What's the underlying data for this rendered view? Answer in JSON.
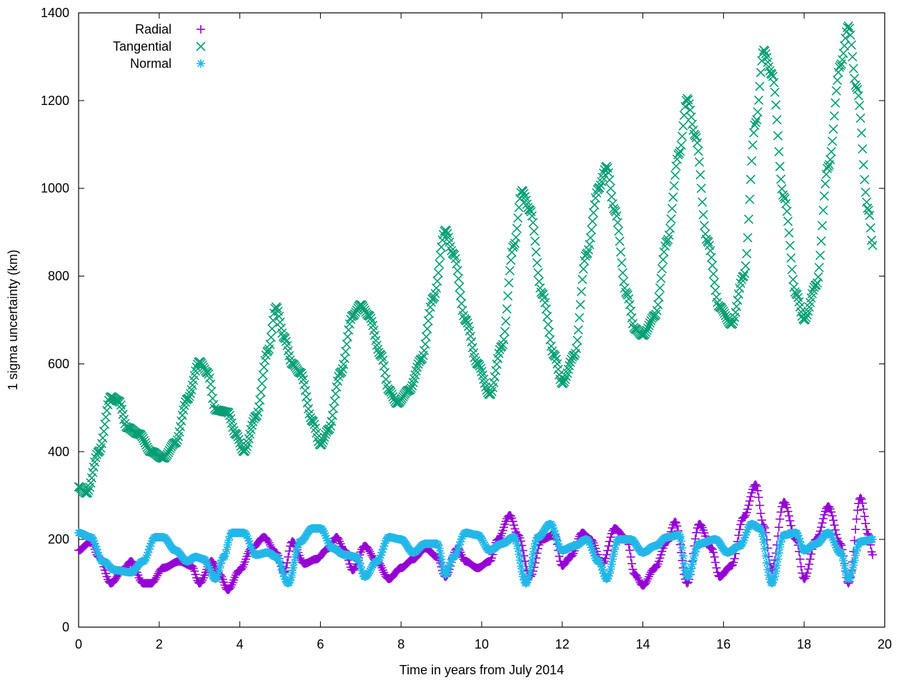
{
  "chart_data": {
    "type": "scatter",
    "xlabel": "Time in years from July 2014",
    "ylabel": "1 sigma uncertainty (km)",
    "xlim": [
      0,
      20
    ],
    "ylim": [
      0,
      1400
    ],
    "xticks": [
      0,
      2,
      4,
      6,
      8,
      10,
      12,
      14,
      16,
      18,
      20
    ],
    "yticks": [
      0,
      200,
      400,
      600,
      800,
      1000,
      1200,
      1400
    ],
    "grid": false,
    "legend_position": "top-left",
    "series": [
      {
        "name": "Radial",
        "marker": "plus",
        "color": "#9400d3",
        "points": [
          [
            0.0,
            175
          ],
          [
            0.3,
            195
          ],
          [
            0.5,
            160
          ],
          [
            0.8,
            100
          ],
          [
            1.1,
            130
          ],
          [
            1.3,
            150
          ],
          [
            1.6,
            100
          ],
          [
            1.8,
            100
          ],
          [
            2.1,
            135
          ],
          [
            2.5,
            150
          ],
          [
            2.8,
            140
          ],
          [
            3.0,
            100
          ],
          [
            3.3,
            150
          ],
          [
            3.5,
            120
          ],
          [
            3.7,
            85
          ],
          [
            4.0,
            130
          ],
          [
            4.3,
            180
          ],
          [
            4.6,
            205
          ],
          [
            4.9,
            170
          ],
          [
            5.1,
            125
          ],
          [
            5.3,
            195
          ],
          [
            5.6,
            145
          ],
          [
            5.9,
            155
          ],
          [
            6.2,
            180
          ],
          [
            6.4,
            205
          ],
          [
            6.6,
            175
          ],
          [
            6.8,
            130
          ],
          [
            7.1,
            185
          ],
          [
            7.4,
            150
          ],
          [
            7.7,
            110
          ],
          [
            8.0,
            135
          ],
          [
            8.3,
            155
          ],
          [
            8.6,
            180
          ],
          [
            8.9,
            160
          ],
          [
            9.1,
            115
          ],
          [
            9.4,
            180
          ],
          [
            9.6,
            150
          ],
          [
            9.9,
            135
          ],
          [
            10.2,
            150
          ],
          [
            10.4,
            200
          ],
          [
            10.7,
            255
          ],
          [
            10.9,
            210
          ],
          [
            11.2,
            115
          ],
          [
            11.5,
            200
          ],
          [
            11.8,
            210
          ],
          [
            12.0,
            140
          ],
          [
            12.2,
            160
          ],
          [
            12.5,
            215
          ],
          [
            12.7,
            200
          ],
          [
            13.0,
            145
          ],
          [
            13.3,
            225
          ],
          [
            13.6,
            200
          ],
          [
            13.8,
            120
          ],
          [
            14.0,
            95
          ],
          [
            14.3,
            135
          ],
          [
            14.6,
            195
          ],
          [
            14.8,
            240
          ],
          [
            15.1,
            100
          ],
          [
            15.4,
            235
          ],
          [
            15.7,
            180
          ],
          [
            15.9,
            115
          ],
          [
            16.2,
            140
          ],
          [
            16.5,
            250
          ],
          [
            16.8,
            325
          ],
          [
            17.0,
            230
          ],
          [
            17.2,
            130
          ],
          [
            17.5,
            285
          ],
          [
            17.8,
            200
          ],
          [
            18.0,
            110
          ],
          [
            18.3,
            200
          ],
          [
            18.6,
            275
          ],
          [
            18.9,
            190
          ],
          [
            19.1,
            100
          ],
          [
            19.4,
            295
          ],
          [
            19.6,
            210
          ],
          [
            19.7,
            165
          ]
        ]
      },
      {
        "name": "Tangential",
        "marker": "cross",
        "color": "#009e73",
        "points": [
          [
            0.0,
            320
          ],
          [
            0.2,
            305
          ],
          [
            0.5,
            400
          ],
          [
            0.8,
            525
          ],
          [
            1.0,
            515
          ],
          [
            1.2,
            455
          ],
          [
            1.5,
            440
          ],
          [
            1.8,
            400
          ],
          [
            2.1,
            385
          ],
          [
            2.4,
            420
          ],
          [
            2.7,
            520
          ],
          [
            3.0,
            605
          ],
          [
            3.2,
            580
          ],
          [
            3.4,
            495
          ],
          [
            3.7,
            490
          ],
          [
            3.9,
            440
          ],
          [
            4.1,
            400
          ],
          [
            4.4,
            480
          ],
          [
            4.7,
            630
          ],
          [
            4.9,
            730
          ],
          [
            5.1,
            660
          ],
          [
            5.3,
            600
          ],
          [
            5.5,
            580
          ],
          [
            5.8,
            470
          ],
          [
            6.0,
            415
          ],
          [
            6.2,
            450
          ],
          [
            6.5,
            580
          ],
          [
            6.8,
            710
          ],
          [
            7.0,
            735
          ],
          [
            7.2,
            710
          ],
          [
            7.5,
            620
          ],
          [
            7.7,
            540
          ],
          [
            7.9,
            510
          ],
          [
            8.2,
            540
          ],
          [
            8.5,
            610
          ],
          [
            8.8,
            750
          ],
          [
            9.1,
            905
          ],
          [
            9.3,
            850
          ],
          [
            9.6,
            700
          ],
          [
            9.9,
            600
          ],
          [
            10.2,
            530
          ],
          [
            10.5,
            640
          ],
          [
            10.8,
            870
          ],
          [
            11.0,
            995
          ],
          [
            11.2,
            950
          ],
          [
            11.5,
            760
          ],
          [
            11.8,
            620
          ],
          [
            12.0,
            555
          ],
          [
            12.3,
            620
          ],
          [
            12.6,
            850
          ],
          [
            12.9,
            1000
          ],
          [
            13.1,
            1050
          ],
          [
            13.3,
            950
          ],
          [
            13.6,
            760
          ],
          [
            13.8,
            680
          ],
          [
            14.0,
            665
          ],
          [
            14.3,
            710
          ],
          [
            14.6,
            880
          ],
          [
            14.9,
            1080
          ],
          [
            15.1,
            1205
          ],
          [
            15.3,
            1120
          ],
          [
            15.6,
            880
          ],
          [
            15.9,
            730
          ],
          [
            16.2,
            690
          ],
          [
            16.5,
            800
          ],
          [
            16.8,
            1150
          ],
          [
            17.0,
            1315
          ],
          [
            17.2,
            1260
          ],
          [
            17.5,
            980
          ],
          [
            17.8,
            760
          ],
          [
            18.0,
            700
          ],
          [
            18.3,
            780
          ],
          [
            18.6,
            1050
          ],
          [
            18.9,
            1280
          ],
          [
            19.1,
            1370
          ],
          [
            19.3,
            1230
          ],
          [
            19.6,
            950
          ],
          [
            19.7,
            870
          ]
        ]
      },
      {
        "name": "Normal",
        "marker": "star",
        "color": "#23b7e8",
        "points": [
          [
            0.0,
            215
          ],
          [
            0.3,
            205
          ],
          [
            0.6,
            150
          ],
          [
            0.9,
            130
          ],
          [
            1.3,
            125
          ],
          [
            1.6,
            150
          ],
          [
            1.9,
            205
          ],
          [
            2.1,
            205
          ],
          [
            2.4,
            175
          ],
          [
            2.7,
            150
          ],
          [
            2.9,
            160
          ],
          [
            3.1,
            155
          ],
          [
            3.4,
            110
          ],
          [
            3.6,
            160
          ],
          [
            3.8,
            215
          ],
          [
            4.1,
            215
          ],
          [
            4.4,
            165
          ],
          [
            4.7,
            170
          ],
          [
            4.9,
            160
          ],
          [
            5.2,
            100
          ],
          [
            5.5,
            195
          ],
          [
            5.8,
            225
          ],
          [
            6.0,
            225
          ],
          [
            6.3,
            180
          ],
          [
            6.6,
            165
          ],
          [
            6.9,
            160
          ],
          [
            7.1,
            115
          ],
          [
            7.4,
            150
          ],
          [
            7.7,
            205
          ],
          [
            8.0,
            200
          ],
          [
            8.3,
            170
          ],
          [
            8.6,
            190
          ],
          [
            8.9,
            190
          ],
          [
            9.1,
            120
          ],
          [
            9.3,
            160
          ],
          [
            9.6,
            215
          ],
          [
            9.9,
            210
          ],
          [
            10.2,
            175
          ],
          [
            10.5,
            190
          ],
          [
            10.8,
            205
          ],
          [
            11.1,
            100
          ],
          [
            11.4,
            205
          ],
          [
            11.7,
            235
          ],
          [
            12.0,
            175
          ],
          [
            12.3,
            185
          ],
          [
            12.6,
            200
          ],
          [
            12.9,
            150
          ],
          [
            13.1,
            110
          ],
          [
            13.4,
            200
          ],
          [
            13.7,
            200
          ],
          [
            14.0,
            170
          ],
          [
            14.3,
            185
          ],
          [
            14.6,
            205
          ],
          [
            14.9,
            210
          ],
          [
            15.1,
            115
          ],
          [
            15.4,
            190
          ],
          [
            15.8,
            200
          ],
          [
            16.1,
            170
          ],
          [
            16.4,
            185
          ],
          [
            16.7,
            235
          ],
          [
            16.9,
            225
          ],
          [
            17.2,
            100
          ],
          [
            17.5,
            210
          ],
          [
            17.8,
            215
          ],
          [
            18.0,
            175
          ],
          [
            18.3,
            190
          ],
          [
            18.6,
            215
          ],
          [
            18.9,
            170
          ],
          [
            19.1,
            110
          ],
          [
            19.4,
            195
          ],
          [
            19.7,
            200
          ]
        ]
      }
    ]
  }
}
